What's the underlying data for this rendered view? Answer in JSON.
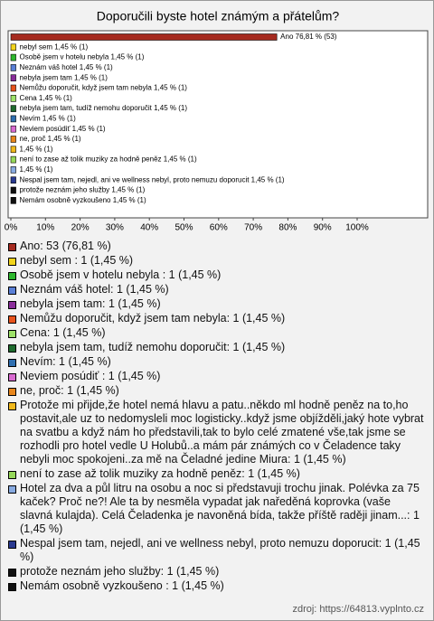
{
  "chart_data": {
    "type": "bar",
    "orientation": "horizontal",
    "title": "Doporučili byste hotel známým a přátelům?",
    "values": [
      76.81,
      1.45,
      1.45,
      1.45,
      1.45,
      1.45,
      1.45,
      1.45,
      1.45,
      1.45,
      1.45,
      1.45,
      1.45,
      1.45,
      1.45,
      1.45,
      1.45
    ],
    "value_labels": [
      "Ano 76,81 % (53)",
      "nebyl sem  1,45 % (1)",
      "Osobě jsem v hotelu nebyla  1,45 % (1)",
      "Neznám váš hotel 1,45 % (1)",
      "nebyla jsem tam 1,45 % (1)",
      "Nemůžu doporučit, když jsem tam nebyla 1,45 % (1)",
      "Cena 1,45 % (1)",
      "nebyla jsem tam, tudíž nemohu doporučit 1,45 % (1)",
      "Nevím 1,45 % (1)",
      "Neviem posúdiť  1,45 % (1)",
      "ne, proč 1,45 % (1)",
      "1,45 % (1)",
      "není to zase až tolik muziky za hodně peněz 1,45 % (1)",
      "1,45 % (1)",
      "Nespal jsem tam, nejedl, ani ve wellness nebyl, proto nemuzu doporucit 1,45 % (1)",
      "protože neznám jeho služby 1,45 % (1)",
      "Nemám osobně vyzkoušeno  1,45 % (1)"
    ],
    "colors": [
      "#a52a1f",
      "#f2d41c",
      "#2eb82e",
      "#5a7fd6",
      "#8a2d9a",
      "#e8531c",
      "#9ee26a",
      "#1f6b2e",
      "#2f6fb0",
      "#d86ad0",
      "#e8861c",
      "#f0b81c",
      "#96d85a",
      "#88aae0",
      "#2a3a90",
      "#111111",
      "#111111"
    ],
    "legend": [
      "Ano: 53 (76,81 %)",
      "nebyl sem : 1 (1,45 %)",
      "Osobě jsem v hotelu nebyla : 1 (1,45 %)",
      "Neznám váš hotel: 1 (1,45 %)",
      "nebyla jsem tam: 1 (1,45 %)",
      "Nemůžu doporučit, když jsem tam nebyla: 1 (1,45 %)",
      "Cena: 1 (1,45 %)",
      "nebyla jsem tam, tudíž nemohu doporučit: 1 (1,45 %)",
      "Nevím: 1 (1,45 %)",
      "Neviem posúdiť : 1 (1,45 %)",
      "ne, proč: 1 (1,45 %)",
      "Protože mi přijde,že hotel nemá hlavu a patu..někdo ml hodně peněz na to,ho postavit,ale uz to nedomysleli moc logisticky..když jsme objížděli,jaký hote vybrat na svatbu a když nám ho představili,tak to bylo celé zmatené vše,tak jsme se rozhodli pro hotel vedle U Holubů..a mám pár známých co v Čeladence taky nebyli moc spokojeni..za mě na Čeladné jedine Miura: 1 (1,45 %)",
      "není to zase až tolik muziky za hodně peněz: 1 (1,45 %)",
      "Hotel za dva a půl litru na osobu a noc si představuji trochu jinak. Polévka za 75 kaček? Proč ne?! Ale ta by nesměla vypadat jak naředěná koprovka (vaše slavná kulajda). Celá Čeladenka je navoněná bída, takže příště raději jinam...: 1 (1,45 %)",
      "Nespal jsem tam, nejedl, ani ve wellness nebyl, proto nemuzu doporucit: 1 (1,45 %)",
      "protože neznám jeho služby: 1 (1,45 %)",
      "Nemám osobně vyzkoušeno : 1 (1,45 %)"
    ],
    "xlim": [
      0,
      100
    ],
    "xticks": [
      {
        "value": 0,
        "label": "0%"
      },
      {
        "value": 10,
        "label": "10%"
      },
      {
        "value": 20,
        "label": "20%"
      },
      {
        "value": 30,
        "label": "30%"
      },
      {
        "value": 40,
        "label": "40%"
      },
      {
        "value": 50,
        "label": "50%"
      },
      {
        "value": 60,
        "label": "60%"
      },
      {
        "value": 70,
        "label": "70%"
      },
      {
        "value": 80,
        "label": "80%"
      },
      {
        "value": 90,
        "label": "90%"
      },
      {
        "value": 100,
        "label": "100%"
      }
    ],
    "source": "zdroj: https://64813.vyplnto.cz"
  }
}
